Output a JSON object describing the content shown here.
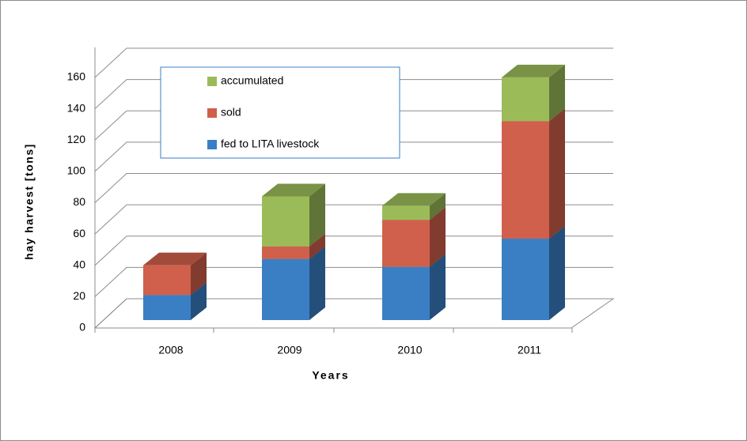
{
  "chart_data": {
    "type": "bar3d_stacked",
    "y_label": "hay harvest [tons]",
    "x_label": "Years",
    "categories": [
      "2008",
      "2009",
      "2010",
      "2011"
    ],
    "series": [
      {
        "name": "fed to LITA livestock",
        "color": "#3a7fc4",
        "values": [
          16,
          39,
          34,
          52
        ]
      },
      {
        "name": "sold",
        "color": "#d0604b",
        "values": [
          19,
          8,
          30,
          75
        ]
      },
      {
        "name": "accumulated",
        "color": "#9bbb59",
        "values": [
          0,
          32,
          9,
          28
        ]
      }
    ],
    "ylim": [
      0,
      160
    ],
    "yticks": [
      0,
      20,
      40,
      60,
      80,
      100,
      120,
      140,
      160
    ],
    "grid": true
  }
}
